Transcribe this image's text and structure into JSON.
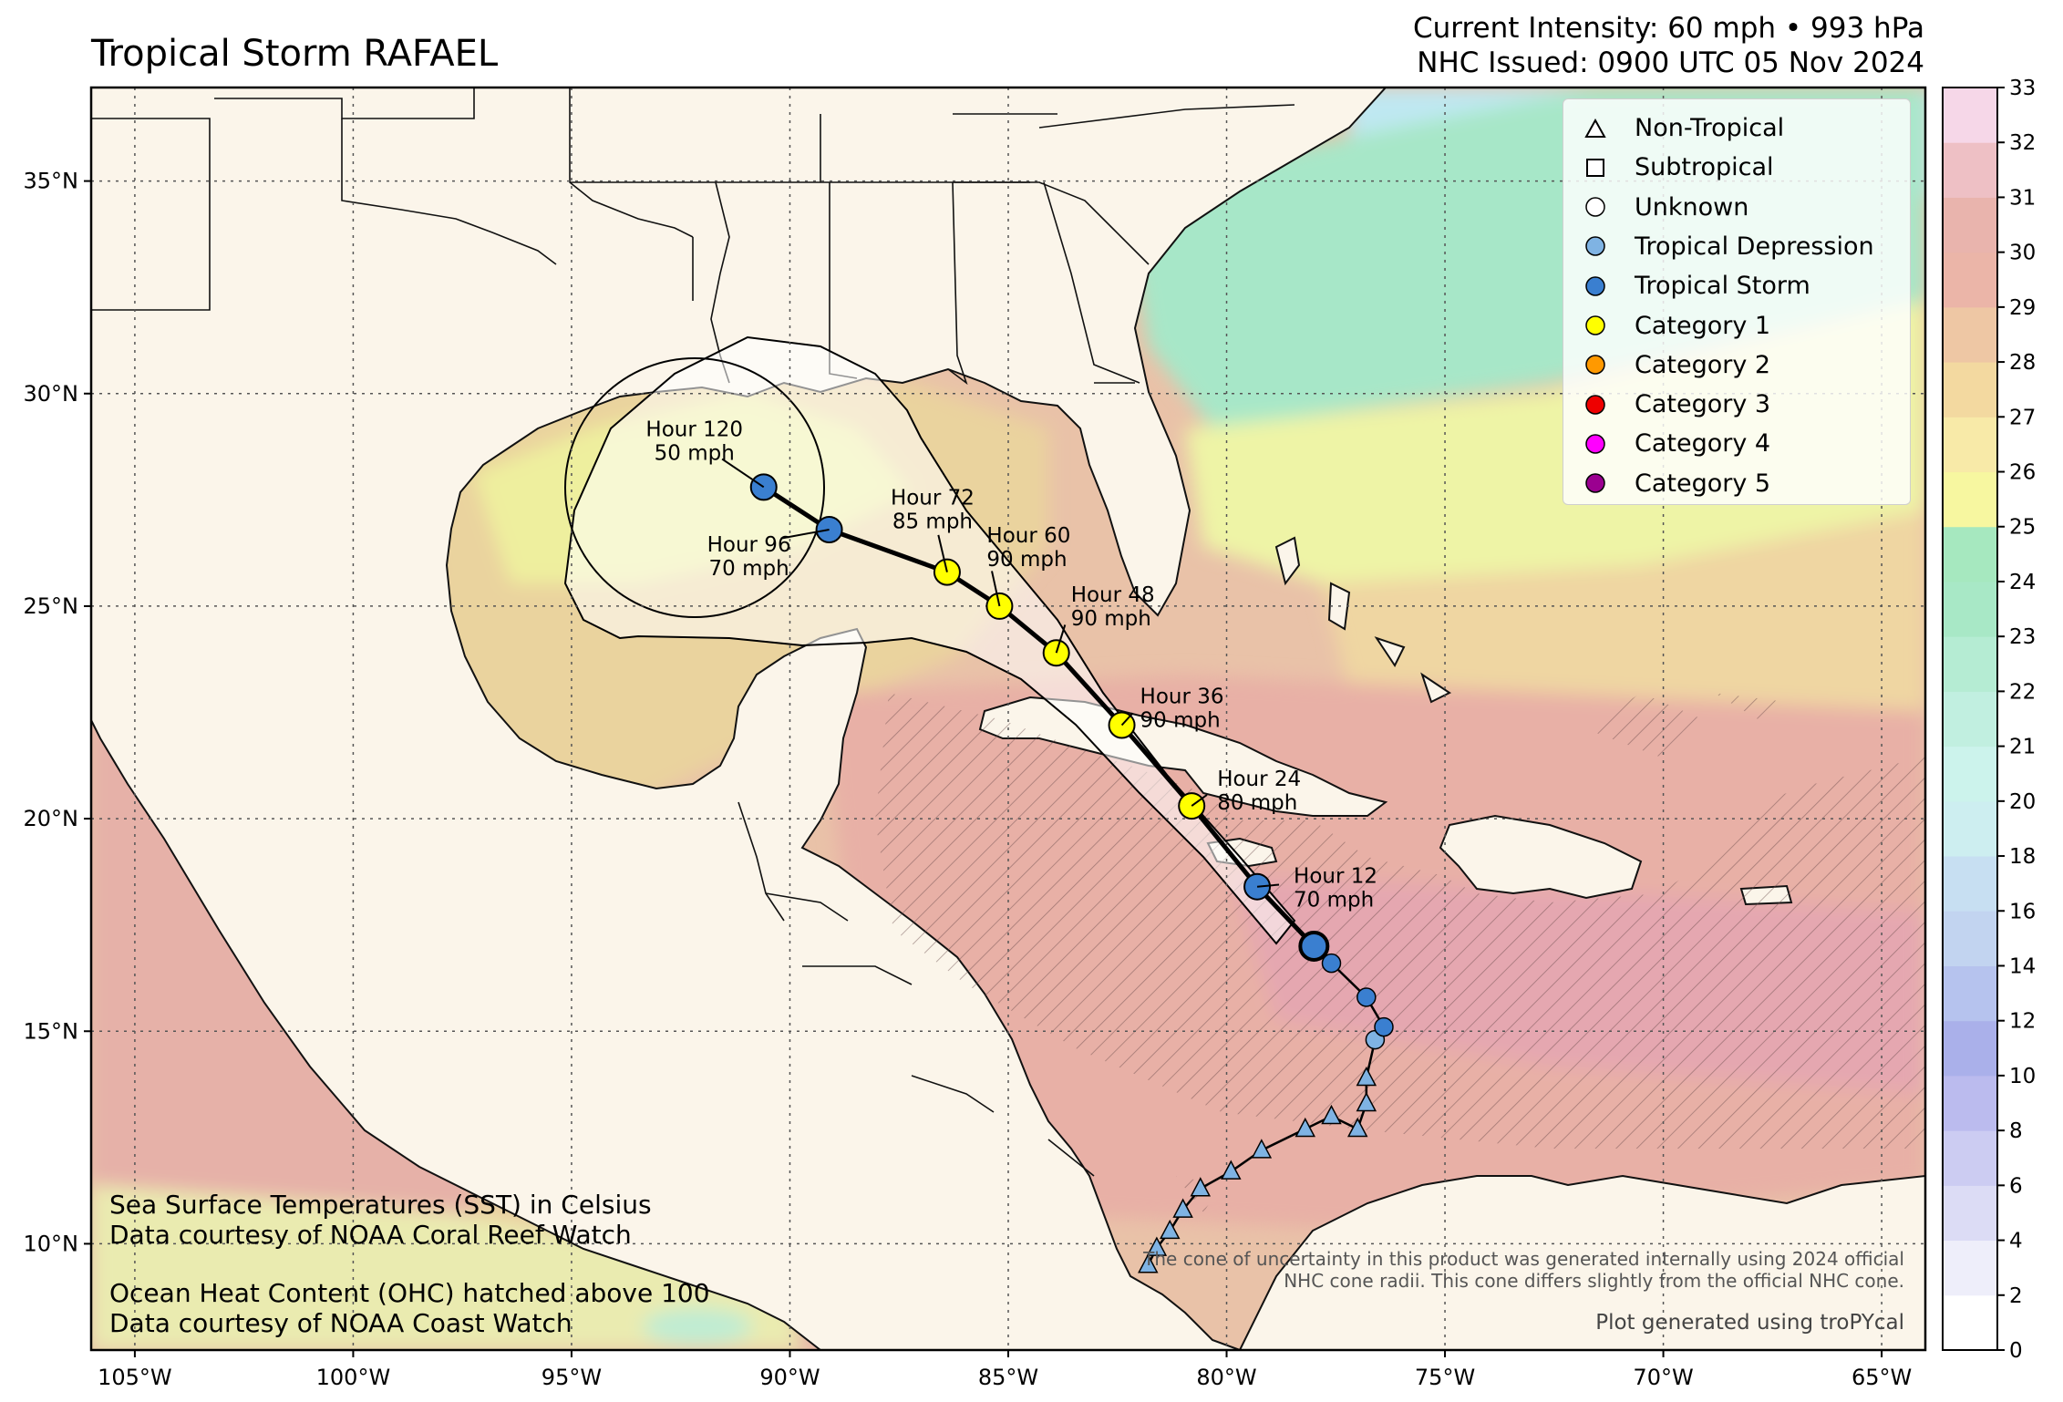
{
  "header": {
    "title": "Tropical Storm RAFAEL",
    "intensity_line": "Current Intensity: 60 mph • 993 hPa",
    "issued_line": "NHC Issued: 0900 UTC 05 Nov 2024"
  },
  "map": {
    "extent_lon": [
      -106,
      -64
    ],
    "extent_lat": [
      7.5,
      37.2
    ],
    "lon_ticks": [
      "105°W",
      "100°W",
      "95°W",
      "90°W",
      "85°W",
      "80°W",
      "75°W",
      "70°W",
      "65°W"
    ],
    "lat_ticks": [
      "35°N",
      "30°N",
      "25°N",
      "20°N",
      "15°N",
      "10°N"
    ]
  },
  "legend": {
    "items": [
      {
        "label": "Non-Tropical",
        "symbol": "triangle",
        "color": "#ffffff"
      },
      {
        "label": "Subtropical",
        "symbol": "square",
        "color": "#ffffff"
      },
      {
        "label": "Unknown",
        "symbol": "circle",
        "color": "#ffffff"
      },
      {
        "label": "Tropical Depression",
        "symbol": "circle",
        "color": "#7fb3e3"
      },
      {
        "label": "Tropical Storm",
        "symbol": "circle",
        "color": "#3a7fd0"
      },
      {
        "label": "Category 1",
        "symbol": "circle",
        "color": "#ffff00"
      },
      {
        "label": "Category 2",
        "symbol": "circle",
        "color": "#ff9900"
      },
      {
        "label": "Category 3",
        "symbol": "circle",
        "color": "#ee0000"
      },
      {
        "label": "Category 4",
        "symbol": "circle",
        "color": "#ff00ff"
      },
      {
        "label": "Category 5",
        "symbol": "circle",
        "color": "#9b0090"
      }
    ]
  },
  "forecast": [
    {
      "hour": "Hour 12",
      "wind": "70 mph",
      "lat": 18.4,
      "lon": -79.3,
      "category": "Tropical Storm"
    },
    {
      "hour": "Hour 24",
      "wind": "80 mph",
      "lat": 20.3,
      "lon": -80.8,
      "category": "Category 1"
    },
    {
      "hour": "Hour 36",
      "wind": "90 mph",
      "lat": 22.2,
      "lon": -82.4,
      "category": "Category 1"
    },
    {
      "hour": "Hour 48",
      "wind": "90 mph",
      "lat": 23.9,
      "lon": -83.9,
      "category": "Category 1"
    },
    {
      "hour": "Hour 60",
      "wind": "90 mph",
      "lat": 25.0,
      "lon": -85.2,
      "category": "Category 1"
    },
    {
      "hour": "Hour 72",
      "wind": "85 mph",
      "lat": 25.8,
      "lon": -86.4,
      "category": "Category 1"
    },
    {
      "hour": "Hour 96",
      "wind": "70 mph",
      "lat": 26.8,
      "lon": -89.1,
      "category": "Tropical Storm"
    },
    {
      "hour": "Hour 120",
      "wind": "50 mph",
      "lat": 27.8,
      "lon": -90.6,
      "category": "Tropical Storm"
    }
  ],
  "current_position": {
    "lat": 17.0,
    "lon": -78.0
  },
  "observed_track": [
    {
      "lat": 9.5,
      "lon": -81.8,
      "type": "Non-Tropical"
    },
    {
      "lat": 9.9,
      "lon": -81.6,
      "type": "Non-Tropical"
    },
    {
      "lat": 10.3,
      "lon": -81.3,
      "type": "Non-Tropical"
    },
    {
      "lat": 10.8,
      "lon": -81.0,
      "type": "Non-Tropical"
    },
    {
      "lat": 11.3,
      "lon": -80.6,
      "type": "Non-Tropical"
    },
    {
      "lat": 11.7,
      "lon": -79.9,
      "type": "Non-Tropical"
    },
    {
      "lat": 12.2,
      "lon": -79.2,
      "type": "Non-Tropical"
    },
    {
      "lat": 12.7,
      "lon": -78.2,
      "type": "Non-Tropical"
    },
    {
      "lat": 13.0,
      "lon": -77.6,
      "type": "Non-Tropical"
    },
    {
      "lat": 12.7,
      "lon": -77.0,
      "type": "Non-Tropical"
    },
    {
      "lat": 13.3,
      "lon": -76.8,
      "type": "Non-Tropical"
    },
    {
      "lat": 13.9,
      "lon": -76.8,
      "type": "Non-Tropical"
    },
    {
      "lat": 14.8,
      "lon": -76.6,
      "type": "Tropical Depression"
    },
    {
      "lat": 15.1,
      "lon": -76.4,
      "type": "Tropical Storm"
    },
    {
      "lat": 15.8,
      "lon": -76.8,
      "type": "Tropical Storm"
    },
    {
      "lat": 16.6,
      "lon": -77.6,
      "type": "Tropical Storm"
    },
    {
      "lat": 17.0,
      "lon": -78.0,
      "type": "Tropical Storm"
    }
  ],
  "colorbar": {
    "ticks": [
      "0",
      "2",
      "4",
      "6",
      "8",
      "10",
      "12",
      "14",
      "16",
      "18",
      "20",
      "21",
      "22",
      "23",
      "24",
      "25",
      "26",
      "27",
      "28",
      "29",
      "30",
      "31",
      "32",
      "33"
    ],
    "colors": [
      "#ffffff",
      "#eeeefa",
      "#dcdcf5",
      "#ccccf2",
      "#bbbbee",
      "#aab0ea",
      "#b6c3ee",
      "#c2d4f0",
      "#c7dff2",
      "#cdeef0",
      "#ccf3ec",
      "#c1efe0",
      "#b5ecd3",
      "#a8e8c6",
      "#a6e8bf",
      "#f7f7a0",
      "#f8eaa8",
      "#f3d9a0",
      "#eec7a4",
      "#ebb5a8",
      "#e9b4ad",
      "#eec0c5",
      "#f6d7e8"
    ]
  },
  "notes": {
    "sst_1": "Sea Surface Temperatures (SST) in Celsius",
    "sst_2": "Data courtesy of NOAA Coral Reef Watch",
    "ohc_1": "Ocean Heat Content (OHC) hatched above 100",
    "ohc_2": "Data courtesy of NOAA Coast Watch",
    "cone_1": "The cone of uncertainty in this product was generated internally using 2024 official",
    "cone_2": "NHC cone radii. This cone differs slightly from the official NHC cone.",
    "credit": "Plot generated using troPYcal"
  }
}
